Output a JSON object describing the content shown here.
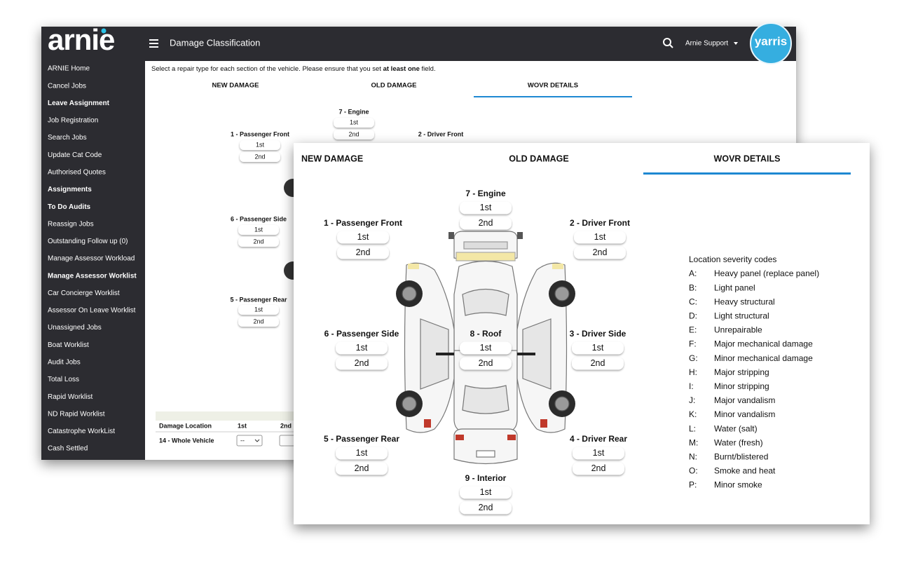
{
  "app": {
    "logo": "arnie",
    "title": "Damage Classification",
    "user": "Arnie Support",
    "brand": "yarris"
  },
  "sidebar": [
    {
      "label": "ARNIE Home",
      "bold": false
    },
    {
      "label": "Cancel Jobs",
      "bold": false
    },
    {
      "label": "Leave Assignment",
      "bold": true
    },
    {
      "label": "Job Registration",
      "bold": false
    },
    {
      "label": "Search Jobs",
      "bold": false
    },
    {
      "label": "Update Cat Code",
      "bold": false
    },
    {
      "label": "Authorised Quotes",
      "bold": false
    },
    {
      "label": "Assignments",
      "bold": true
    },
    {
      "label": "To Do Audits",
      "bold": true
    },
    {
      "label": "Reassign Jobs",
      "bold": false
    },
    {
      "label": "Outstanding Follow up (0)",
      "bold": false
    },
    {
      "label": "Manage Assessor Workload",
      "bold": false
    },
    {
      "label": "Manage Assessor Worklist",
      "bold": true
    },
    {
      "label": "Car Concierge Worklist",
      "bold": false
    },
    {
      "label": "Assessor On Leave Worklist",
      "bold": false
    },
    {
      "label": "Unassigned Jobs",
      "bold": false
    },
    {
      "label": "Boat Worklist",
      "bold": false
    },
    {
      "label": "Audit Jobs",
      "bold": false
    },
    {
      "label": "Total Loss",
      "bold": false
    },
    {
      "label": "Rapid Worklist",
      "bold": false
    },
    {
      "label": "ND Rapid Worklist",
      "bold": false
    },
    {
      "label": "Catastrophe WorkList",
      "bold": false
    },
    {
      "label": "Cash Settled",
      "bold": false
    }
  ],
  "back_panel": {
    "instruction": {
      "before": "Select a repair type for each section of the vehicle. Please ensure that you set ",
      "bold": "at least one",
      "after": " field."
    },
    "tabs": [
      "NEW DAMAGE",
      "OLD DAMAGE",
      "WOVR DETAILS"
    ],
    "locations": [
      {
        "label": "7 - Engine",
        "buttons": [
          "1st",
          "2nd"
        ]
      },
      {
        "label": "1 - Passenger Front",
        "buttons": [
          "1st",
          "2nd"
        ]
      },
      {
        "label": "2 - Driver Front",
        "buttons": []
      },
      {
        "label": "6 - Passenger Side",
        "buttons": [
          "1st",
          "2nd"
        ]
      },
      {
        "label": "5 - Passenger Rear",
        "buttons": [
          "1st",
          "2nd"
        ]
      }
    ],
    "table": {
      "headers": [
        "Damage Location",
        "1st",
        "2nd"
      ],
      "rows": [
        [
          "14 - Whole Vehicle",
          "--"
        ]
      ]
    }
  },
  "front_panel": {
    "tabs": [
      "NEW DAMAGE",
      "OLD DAMAGE",
      "WOVR DETAILS"
    ],
    "locations": [
      {
        "label": "7 - Engine",
        "buttons": [
          "1st",
          "2nd"
        ]
      },
      {
        "label": "1 - Passenger Front",
        "buttons": [
          "1st",
          "2nd"
        ]
      },
      {
        "label": "2 - Driver Front",
        "buttons": [
          "1st",
          "2nd"
        ]
      },
      {
        "label": "6 - Passenger Side",
        "buttons": [
          "1st",
          "2nd"
        ]
      },
      {
        "label": "8 - Roof",
        "buttons": [
          "1st",
          "2nd"
        ]
      },
      {
        "label": "3 - Driver Side",
        "buttons": [
          "1st",
          "2nd"
        ]
      },
      {
        "label": "5 - Passenger Rear",
        "buttons": [
          "1st",
          "2nd"
        ]
      },
      {
        "label": "4 - Driver Rear",
        "buttons": [
          "1st",
          "2nd"
        ]
      },
      {
        "label": "9 - Interior",
        "buttons": [
          "1st",
          "2nd"
        ]
      }
    ],
    "legend": {
      "title": "Location severity codes",
      "codes": [
        {
          "code": "A:",
          "text": "Heavy panel (replace panel)"
        },
        {
          "code": "B:",
          "text": "Light panel"
        },
        {
          "code": "C:",
          "text": "Heavy structural"
        },
        {
          "code": "D:",
          "text": "Light structural"
        },
        {
          "code": "E:",
          "text": "Unrepairable"
        },
        {
          "code": "F:",
          "text": "Major mechanical damage"
        },
        {
          "code": "G:",
          "text": "Minor mechanical damage"
        },
        {
          "code": "H:",
          "text": "Major stripping"
        },
        {
          "code": "I:",
          "text": "Minor stripping"
        },
        {
          "code": "J:",
          "text": "Major vandalism"
        },
        {
          "code": "K:",
          "text": "Minor vandalism"
        },
        {
          "code": "L:",
          "text": "Water (salt)"
        },
        {
          "code": "M:",
          "text": "Water (fresh)"
        },
        {
          "code": "N:",
          "text": "Burnt/blistered"
        },
        {
          "code": "O:",
          "text": "Smoke and heat"
        },
        {
          "code": "P:",
          "text": "Minor smoke"
        }
      ]
    }
  }
}
